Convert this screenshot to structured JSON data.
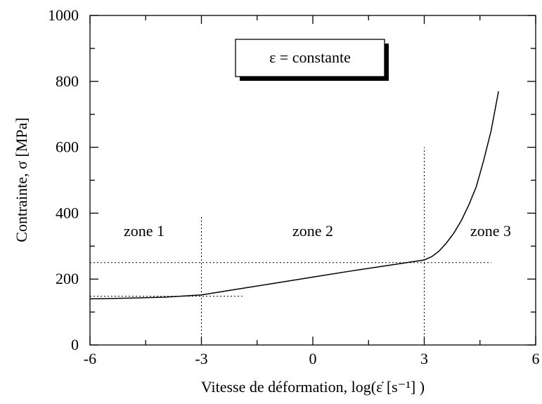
{
  "chart_data": {
    "type": "line",
    "xlabel": "Vitesse de déformation, log(ε̇ [s⁻¹] )",
    "ylabel": "Contrainte, σ [MPa]",
    "x": [
      -6,
      -5,
      -4,
      -3,
      -2,
      -1,
      0,
      1,
      2,
      3,
      3.2,
      3.4,
      3.6,
      3.8,
      4,
      4.2,
      4.4,
      4.6,
      4.8,
      5
    ],
    "series": [
      {
        "color": "#000000",
        "values": [
          140,
          142,
          145,
          152,
          170,
          188,
          206,
          224,
          241,
          258,
          268,
          285,
          310,
          340,
          378,
          425,
          480,
          560,
          650,
          770
        ]
      }
    ],
    "xlim": [
      -6,
      6
    ],
    "xticks": [
      -6,
      -3,
      0,
      3,
      6
    ],
    "xminorticks": [
      -4.5,
      -1.5,
      1.5,
      4.5
    ],
    "ylim": [
      0,
      1000
    ],
    "yticks": [
      0,
      200,
      400,
      600,
      800,
      1000
    ],
    "yminorticks": [
      100,
      300,
      500,
      700,
      900
    ],
    "grid": false,
    "annotations": [
      "zone 1",
      "zone 2",
      "zone 3"
    ],
    "box_label": "ε = constante",
    "reference_lines": [
      {
        "x": [
          -6,
          4.8
        ],
        "y": [
          250,
          250
        ]
      },
      {
        "x": [
          -6,
          -1.9
        ],
        "y": [
          148,
          148
        ]
      },
      {
        "x": [
          -3,
          -3
        ],
        "y": [
          0,
          390
        ]
      },
      {
        "x": [
          3,
          3
        ],
        "y": [
          0,
          600
        ]
      }
    ]
  }
}
